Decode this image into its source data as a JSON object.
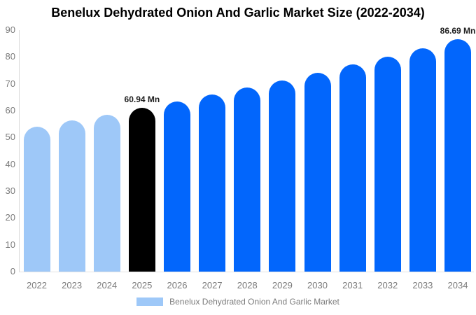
{
  "title": "Benelux Dehydrated Onion And Garlic Market Size (2022-2034)",
  "colors": {
    "historical_bar": "#9EC8F8",
    "highlight_bar": "#000000",
    "forecast_bar": "#0266FC",
    "axis_text": "#7b7b7b",
    "annotation_text": "#1f1f1f",
    "axis_line": "#d9d9d9",
    "background": "#ffffff"
  },
  "chart_data": {
    "type": "bar",
    "title": "Benelux Dehydrated Onion And Garlic Market Size (2022-2034)",
    "categories": [
      "2022",
      "2023",
      "2024",
      "2025",
      "2026",
      "2027",
      "2028",
      "2029",
      "2030",
      "2031",
      "2032",
      "2033",
      "2034"
    ],
    "values": [
      54,
      56.3,
      58.5,
      60.94,
      63.4,
      65.9,
      68.5,
      71.2,
      74,
      77.1,
      80.1,
      83.3,
      86.69
    ],
    "unit": "Mn",
    "bar_roles": [
      "historical",
      "historical",
      "historical",
      "highlight",
      "forecast",
      "forecast",
      "forecast",
      "forecast",
      "forecast",
      "forecast",
      "forecast",
      "forecast",
      "forecast"
    ],
    "y_ticks": [
      0,
      10,
      20,
      30,
      40,
      50,
      60,
      70,
      80,
      90
    ],
    "ylim": [
      0,
      90
    ],
    "grid": false,
    "data_labels": [
      {
        "category": "2025",
        "text": "60.94 Mn"
      },
      {
        "category": "2034",
        "text": "86.69 Mn"
      }
    ],
    "legend": [
      {
        "label": "Benelux Dehydrated Onion And Garlic Market",
        "color": "#9EC8F8"
      }
    ],
    "legend_position": "bottom"
  }
}
